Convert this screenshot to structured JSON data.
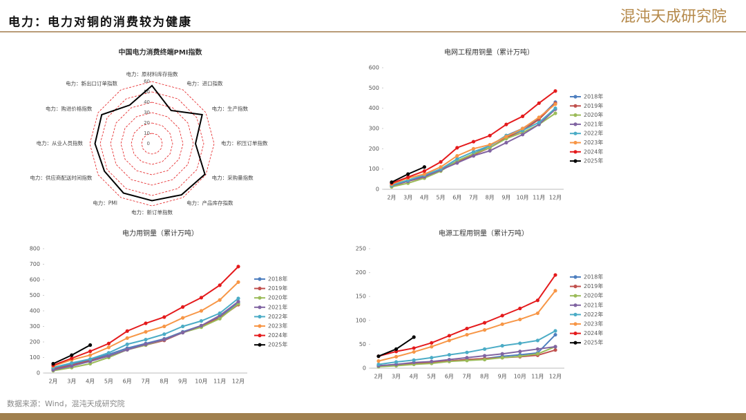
{
  "header": {
    "title": "电力：电力对铜的消费较为健康",
    "logo": "混沌天成研究院"
  },
  "source": "数据来源：Wind，混沌天成研究院",
  "chart_data": [
    {
      "type": "radar",
      "title": "中国电力消费终端PMI指数",
      "categories": [
        "电力：原材料库存指数",
        "电力：进口指数",
        "电力：生产指数",
        "电力：积压订单指数",
        "电力：采购量指数",
        "电力：产品库存指数",
        "电力：新订单指数",
        "电力：PMI",
        "电力：供应商配送时间指数",
        "电力：从业人员指数",
        "电力：购进价格指数",
        "电力：新出口订单指数"
      ],
      "values": [
        56,
        37,
        56,
        42,
        59,
        57,
        55,
        55,
        53,
        55,
        56,
        43
      ],
      "color": "#000000",
      "ring_color": "#e41a1c",
      "rlim": [
        0,
        60
      ],
      "rticks": [
        0,
        10,
        20,
        30,
        40,
        50,
        60
      ]
    },
    {
      "type": "line",
      "title": "电网工程用铜量（累计万吨）",
      "categories": [
        "2月",
        "3月",
        "4月",
        "5月",
        "6月",
        "7月",
        "8月",
        "9月",
        "10月",
        "11月",
        "12月"
      ],
      "ylim": [
        0,
        600
      ],
      "yticks": [
        0,
        100,
        200,
        300,
        400,
        500,
        600
      ],
      "series": [
        {
          "name": "2018年",
          "color": "#4e7fbf",
          "values": [
            20,
            45,
            65,
            95,
            140,
            175,
            215,
            265,
            300,
            350,
            430
          ]
        },
        {
          "name": "2019年",
          "color": "#c0504d",
          "values": [
            15,
            40,
            60,
            95,
            135,
            170,
            205,
            255,
            290,
            345,
            425
          ]
        },
        {
          "name": "2020年",
          "color": "#9bbb59",
          "values": [
            12,
            30,
            55,
            90,
            140,
            175,
            205,
            250,
            280,
            320,
            375
          ]
        },
        {
          "name": "2021年",
          "color": "#8064a2",
          "values": [
            18,
            40,
            62,
            95,
            130,
            165,
            190,
            230,
            270,
            320,
            395
          ]
        },
        {
          "name": "2022年",
          "color": "#4bacc6",
          "values": [
            20,
            45,
            70,
            100,
            150,
            185,
            215,
            265,
            290,
            330,
            400
          ]
        },
        {
          "name": "2023年",
          "color": "#f79646",
          "values": [
            25,
            55,
            75,
            110,
            165,
            200,
            220,
            260,
            300,
            355,
            420
          ]
        },
        {
          "name": "2024年",
          "color": "#e41a1c",
          "values": [
            30,
            60,
            90,
            135,
            205,
            235,
            265,
            320,
            360,
            425,
            485
          ]
        },
        {
          "name": "2025年",
          "color": "#000000",
          "values": [
            35,
            75,
            110,
            null,
            null,
            null,
            null,
            null,
            null,
            null,
            null
          ]
        }
      ]
    },
    {
      "type": "line",
      "title": "电力用铜量（累计万吨）",
      "categories": [
        "2月",
        "3月",
        "4月",
        "5月",
        "6月",
        "7月",
        "8月",
        "9月",
        "10月",
        "11月",
        "12月"
      ],
      "ylim": [
        0,
        800
      ],
      "yticks": [
        0,
        100,
        200,
        300,
        400,
        500,
        600,
        700,
        800
      ],
      "series": [
        {
          "name": "2018年",
          "color": "#4e7fbf",
          "values": [
            30,
            55,
            85,
            120,
            160,
            190,
            220,
            265,
            305,
            360,
            450
          ]
        },
        {
          "name": "2019年",
          "color": "#c0504d",
          "values": [
            25,
            50,
            80,
            110,
            150,
            180,
            210,
            260,
            300,
            355,
            440
          ]
        },
        {
          "name": "2020年",
          "color": "#9bbb59",
          "values": [
            15,
            35,
            60,
            100,
            150,
            180,
            215,
            260,
            295,
            350,
            445
          ]
        },
        {
          "name": "2021年",
          "color": "#8064a2",
          "values": [
            20,
            45,
            75,
            110,
            150,
            185,
            215,
            260,
            305,
            370,
            460
          ]
        },
        {
          "name": "2022年",
          "color": "#4bacc6",
          "values": [
            35,
            65,
            90,
            130,
            185,
            215,
            250,
            300,
            335,
            385,
            480
          ]
        },
        {
          "name": "2023年",
          "color": "#f79646",
          "values": [
            45,
            85,
            115,
            165,
            225,
            265,
            300,
            355,
            400,
            470,
            585
          ]
        },
        {
          "name": "2024年",
          "color": "#e41a1c",
          "values": [
            50,
            95,
            140,
            190,
            270,
            320,
            360,
            425,
            485,
            565,
            685
          ]
        },
        {
          "name": "2025年",
          "color": "#000000",
          "values": [
            60,
            115,
            180,
            null,
            null,
            null,
            null,
            null,
            null,
            null,
            null
          ]
        }
      ]
    },
    {
      "type": "line",
      "title": "电源工程用铜量（累计万吨）",
      "categories": [
        "2月",
        "3月",
        "4月",
        "5月",
        "6月",
        "7月",
        "8月",
        "9月",
        "10月",
        "11月",
        "12月"
      ],
      "ylim": [
        0,
        250
      ],
      "yticks": [
        0,
        50,
        100,
        150,
        200,
        250
      ],
      "series": [
        {
          "name": "2018年",
          "color": "#4e7fbf",
          "values": [
            5,
            8,
            10,
            12,
            15,
            18,
            20,
            25,
            28,
            32,
            70
          ]
        },
        {
          "name": "2019年",
          "color": "#c0504d",
          "values": [
            5,
            7,
            9,
            12,
            15,
            18,
            20,
            22,
            24,
            27,
            38
          ]
        },
        {
          "name": "2020年",
          "color": "#9bbb59",
          "values": [
            3,
            5,
            8,
            10,
            14,
            16,
            18,
            22,
            25,
            30,
            45
          ]
        },
        {
          "name": "2021年",
          "color": "#8064a2",
          "values": [
            5,
            8,
            12,
            14,
            18,
            22,
            26,
            30,
            35,
            40,
            45
          ]
        },
        {
          "name": "2022年",
          "color": "#4bacc6",
          "values": [
            8,
            13,
            17,
            22,
            28,
            33,
            40,
            47,
            52,
            58,
            78
          ]
        },
        {
          "name": "2023年",
          "color": "#f79646",
          "values": [
            15,
            24,
            34,
            45,
            58,
            70,
            80,
            92,
            102,
            115,
            162
          ]
        },
        {
          "name": "2024年",
          "color": "#e41a1c",
          "values": [
            25,
            35,
            42,
            53,
            68,
            83,
            95,
            110,
            125,
            142,
            195
          ]
        },
        {
          "name": "2025年",
          "color": "#000000",
          "values": [
            25,
            40,
            65,
            null,
            null,
            null,
            null,
            null,
            null,
            null,
            null
          ]
        }
      ]
    }
  ]
}
